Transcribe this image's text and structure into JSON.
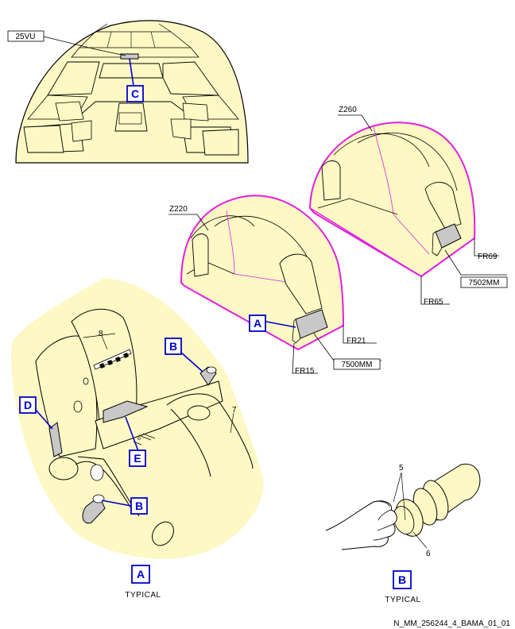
{
  "colors": {
    "fill": "#fdf8c4",
    "zone_outline": "#e020e0",
    "callout_blue": "#0000cc",
    "panel_gray": "#c8c8c8"
  },
  "labels": {
    "panel_25vu": "25VU",
    "zone_z260": "Z260",
    "zone_z220": "Z220",
    "frame_fr69": "FR69",
    "item_7502mm": "7502MM",
    "frame_fr65": "FR65",
    "frame_fr21": "FR21",
    "frame_fr15": "FR15",
    "item_7500mm": "7500MM",
    "item_8": "8",
    "item_7": "7",
    "item_5": "5",
    "item_6": "6"
  },
  "callouts": {
    "c_cockpit": "C",
    "a_zone": "A",
    "b_top": "B",
    "d_seat": "D",
    "e_seat": "E",
    "b_lower": "B",
    "a_detail": "A",
    "b_detail": "B"
  },
  "captions": {
    "typical_a": "TYPICAL",
    "typical_b": "TYPICAL"
  },
  "footer": {
    "reference": "N_MM_256244_4_BAMA_01_01"
  }
}
